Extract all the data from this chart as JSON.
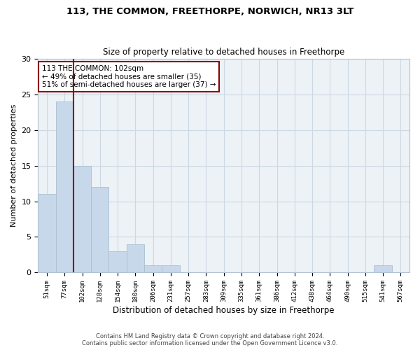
{
  "title1": "113, THE COMMON, FREETHORPE, NORWICH, NR13 3LT",
  "title2": "Size of property relative to detached houses in Freethorpe",
  "xlabel": "Distribution of detached houses by size in Freethorpe",
  "ylabel": "Number of detached properties",
  "bin_labels": [
    "51sqm",
    "77sqm",
    "102sqm",
    "128sqm",
    "154sqm",
    "180sqm",
    "206sqm",
    "231sqm",
    "257sqm",
    "283sqm",
    "309sqm",
    "335sqm",
    "361sqm",
    "386sqm",
    "412sqm",
    "438sqm",
    "464sqm",
    "490sqm",
    "515sqm",
    "541sqm",
    "567sqm"
  ],
  "bin_values": [
    11,
    24,
    15,
    12,
    3,
    4,
    1,
    1,
    0,
    0,
    0,
    0,
    0,
    0,
    0,
    0,
    0,
    0,
    0,
    1,
    0
  ],
  "bar_color": "#c8d8eb",
  "bar_edge_color": "#a8bfd0",
  "property_line_color": "#8b0000",
  "annotation_text": "113 THE COMMON: 102sqm\n← 49% of detached houses are smaller (35)\n51% of semi-detached houses are larger (37) →",
  "annotation_box_color": "#8b0000",
  "ylim": [
    0,
    30
  ],
  "yticks": [
    0,
    5,
    10,
    15,
    20,
    25,
    30
  ],
  "grid_color": "#cdd8e3",
  "bg_color": "#edf2f7",
  "footer1": "Contains HM Land Registry data © Crown copyright and database right 2024.",
  "footer2": "Contains public sector information licensed under the Open Government Licence v3.0."
}
